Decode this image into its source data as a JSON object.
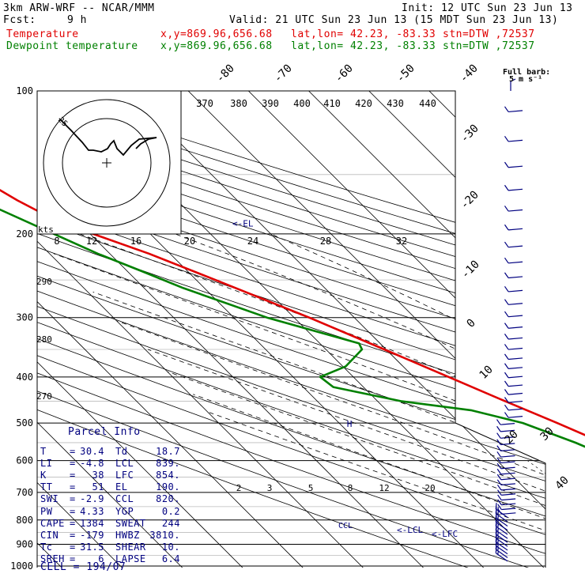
{
  "header": {
    "model": "3km ARW-WRF -- NCAR/MMM",
    "init": "Init: 12 UTC Sun 23 Jun 13",
    "fcst_label": "Fcst:",
    "fcst_value": "9 h",
    "valid": "Valid: 21 UTC Sun 23 Jun 13 (15 MDT Sun 23 Jun 13)",
    "temp_label": "Temperature",
    "dew_label": "Dewpoint temperature",
    "xy": "x,y=869.96,656.68",
    "latlon": "lat,lon= 42.23, -83.33",
    "stn": "stn=DTW ,72537",
    "full_barb": "Full barb:",
    "full_barb_unit": "5 m s⁻¹"
  },
  "colors": {
    "temperature": "#e00000",
    "dewpoint": "#008000",
    "wind": "#000080"
  },
  "chart_data": {
    "type": "line",
    "title": "Skew-T log-p sounding",
    "pressure_ticks": [
      "100",
      "200",
      "300",
      "400",
      "500",
      "600",
      "700",
      "800",
      "900",
      "1000"
    ],
    "isotherm_labels": [
      {
        "t": -80,
        "text": "-80"
      },
      {
        "t": -70,
        "text": "-70"
      },
      {
        "t": -60,
        "text": "-60"
      },
      {
        "t": -50,
        "text": "-50"
      },
      {
        "t": -40,
        "text": "-40"
      },
      {
        "t": -30,
        "text": "-30"
      },
      {
        "t": -20,
        "text": "-20"
      },
      {
        "t": -10,
        "text": "-10"
      },
      {
        "t": 0,
        "text": "0"
      },
      {
        "t": 10,
        "text": "10"
      },
      {
        "t": 20,
        "text": "20"
      },
      {
        "t": 30,
        "text": "30"
      },
      {
        "t": 40,
        "text": "40"
      }
    ],
    "theta_top_labels": [
      "370",
      "380",
      "390",
      "400",
      "410",
      "420",
      "430",
      "440"
    ],
    "theta_left_labels": [
      "290",
      "280",
      "270"
    ],
    "mixing_ratio_labels": [
      "2",
      "3",
      "5",
      "8",
      "12",
      "20"
    ],
    "hodo_ring_labels": [
      "8",
      "12",
      "16",
      "20",
      "24",
      "28",
      "32"
    ],
    "hodo_unit": "kts",
    "hodo_start_label": "25",
    "markers": [
      {
        "text": "<-EL",
        "p": 190
      },
      {
        "text": "<-LCL",
        "p": 839
      },
      {
        "text": "<-LFC",
        "p": 854
      }
    ],
    "marker_h": "H",
    "marker_ccl": "CCL",
    "series": [
      {
        "name": "Temperature",
        "points": [
          {
            "p": 1000,
            "t": 30.4
          },
          {
            "p": 975,
            "t": 28.0
          },
          {
            "p": 950,
            "t": 25.5
          },
          {
            "p": 925,
            "t": 23.5
          },
          {
            "p": 900,
            "t": 22.2
          },
          {
            "p": 870,
            "t": 21.8
          },
          {
            "p": 850,
            "t": 20.8
          },
          {
            "p": 800,
            "t": 18.2
          },
          {
            "p": 750,
            "t": 15.0
          },
          {
            "p": 700,
            "t": 11.8
          },
          {
            "p": 650,
            "t": 8.2
          },
          {
            "p": 600,
            "t": 4.5
          },
          {
            "p": 550,
            "t": 0.5
          },
          {
            "p": 500,
            "t": -3.8
          },
          {
            "p": 450,
            "t": -8.8
          },
          {
            "p": 400,
            "t": -14.2
          },
          {
            "p": 350,
            "t": -20.3
          },
          {
            "p": 300,
            "t": -27.5
          },
          {
            "p": 250,
            "t": -36.8
          },
          {
            "p": 220,
            "t": -43.5
          },
          {
            "p": 200,
            "t": -49.5
          },
          {
            "p": 190,
            "t": -53.0
          },
          {
            "p": 170,
            "t": -56.5
          },
          {
            "p": 150,
            "t": -59.5
          },
          {
            "p": 130,
            "t": -61.0
          },
          {
            "p": 115,
            "t": -62.0
          },
          {
            "p": 100,
            "t": -63.5
          }
        ]
      },
      {
        "name": "Dewpoint temperature",
        "points": [
          {
            "p": 1000,
            "t": 18.7
          },
          {
            "p": 950,
            "t": 18.2
          },
          {
            "p": 900,
            "t": 18.0
          },
          {
            "p": 870,
            "t": 17.0
          },
          {
            "p": 850,
            "t": 16.0
          },
          {
            "p": 820,
            "t": 14.0
          },
          {
            "p": 800,
            "t": 10.0
          },
          {
            "p": 780,
            "t": 9.0
          },
          {
            "p": 750,
            "t": 9.0
          },
          {
            "p": 700,
            "t": 7.5
          },
          {
            "p": 650,
            "t": 4.5
          },
          {
            "p": 600,
            "t": 0.0
          },
          {
            "p": 550,
            "t": -4.0
          },
          {
            "p": 500,
            "t": -9.5
          },
          {
            "p": 470,
            "t": -16.0
          },
          {
            "p": 450,
            "t": -26.0
          },
          {
            "p": 420,
            "t": -35.0
          },
          {
            "p": 400,
            "t": -35.5
          },
          {
            "p": 380,
            "t": -29.5
          },
          {
            "p": 350,
            "t": -24.0
          },
          {
            "p": 340,
            "t": -23.5
          },
          {
            "p": 300,
            "t": -34.5
          },
          {
            "p": 260,
            "t": -43.5
          },
          {
            "p": 240,
            "t": -47.5
          },
          {
            "p": 220,
            "t": -52.0
          },
          {
            "p": 200,
            "t": -56.0
          },
          {
            "p": 150,
            "t": -68.0
          },
          {
            "p": 120,
            "t": -74.0
          },
          {
            "p": 100,
            "t": -78.5
          }
        ]
      }
    ]
  },
  "parcel_info": {
    "title": "Parcel Info",
    "rows": [
      {
        "l1": "T",
        "v1": "30.4",
        "l2": "Td",
        "v2": "18.7"
      },
      {
        "l1": "LI",
        "v1": "-4.8",
        "l2": "LCL",
        "v2": "839."
      },
      {
        "l1": "K",
        "v1": "38",
        "l2": "LFC",
        "v2": "854."
      },
      {
        "l1": "TT",
        "v1": "51",
        "l2": "EL",
        "v2": "190."
      },
      {
        "l1": "SWI",
        "v1": "-2.9",
        "l2": "CCL",
        "v2": "820."
      },
      {
        "l1": "PW",
        "v1": "4.33",
        "l2": "YGP",
        "v2": "0.2"
      },
      {
        "l1": "CAPE",
        "v1": "1384",
        "l2": "SWEAT",
        "v2": "244"
      },
      {
        "l1": "CIN",
        "v1": "-179",
        "l2": "HWBZ",
        "v2": "3810."
      },
      {
        "l1": "Tc",
        "v1": "31.5",
        "l2": "SHEAR",
        "v2": "10."
      },
      {
        "l1": "SREH",
        "v1": "6",
        "l2": "LAPSE",
        "v2": "6.4"
      }
    ],
    "cell": "CELL = 194/07"
  }
}
